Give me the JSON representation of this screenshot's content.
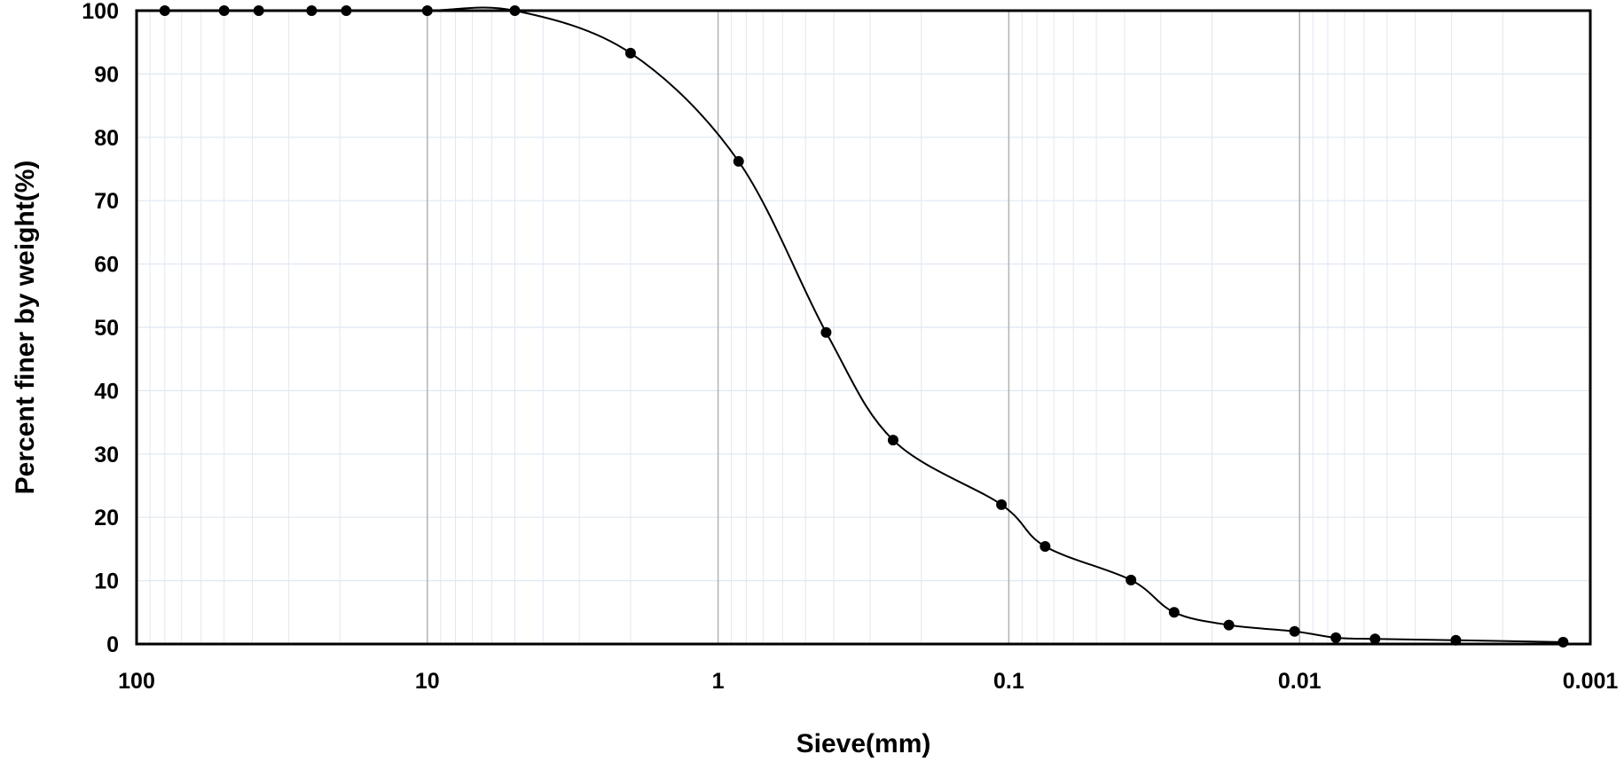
{
  "chart_data": {
    "type": "scatter",
    "xlabel": "Sieve(mm)",
    "ylabel": "Percent finer by weight(%)",
    "x_scale": "log",
    "x_reversed": true,
    "xlim": [
      100,
      0.001
    ],
    "ylim": [
      0,
      100
    ],
    "x_ticks": [
      100,
      10,
      1,
      0.1,
      0.01,
      0.001
    ],
    "x_tick_labels": [
      "100",
      "10",
      "1",
      "0.1",
      "0.01",
      "0.001"
    ],
    "y_ticks": [
      0,
      10,
      20,
      30,
      40,
      50,
      60,
      70,
      80,
      90,
      100
    ],
    "y_tick_labels": [
      "0",
      "10",
      "20",
      "30",
      "40",
      "50",
      "60",
      "70",
      "80",
      "90",
      "100"
    ],
    "grid": true,
    "series": [
      {
        "marker": "filled-circle",
        "line": "smooth",
        "color": "#000000",
        "x": [
          80,
          50,
          38,
          25,
          19,
          10,
          5,
          2,
          0.85,
          0.425,
          0.25,
          0.106,
          0.075,
          0.038,
          0.027,
          0.0175,
          0.0104,
          0.0075,
          0.0055,
          0.0029,
          0.00124
        ],
        "y": [
          100,
          100,
          100,
          100,
          100,
          100,
          100,
          93.3,
          76.2,
          49.2,
          32.2,
          22.0,
          15.4,
          10.1,
          5.0,
          3.0,
          2.0,
          1.0,
          0.8,
          0.6,
          0.3
        ]
      }
    ]
  },
  "colors": {
    "major_grid": "#b3b3b3",
    "minor_grid": "#dfe8f2",
    "axis": "#000000",
    "series": "#000000"
  }
}
